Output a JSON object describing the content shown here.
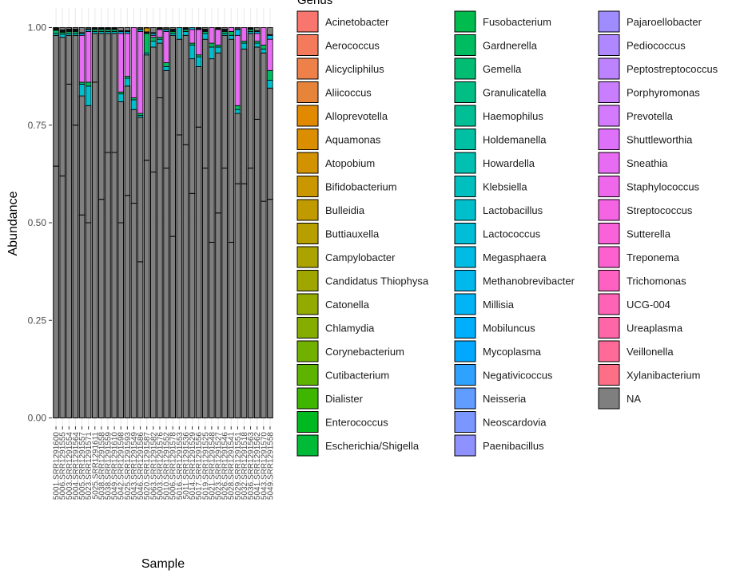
{
  "chart_data": {
    "type": "bar",
    "stacked": true,
    "xlabel": "Sample",
    "ylabel": "Abundance",
    "ylim": [
      0,
      1
    ],
    "yticks": [
      "0.00",
      "0.25",
      "0.50",
      "0.75",
      "1.00"
    ],
    "legend_title": "Genus",
    "legend_placement": "right",
    "grid": true,
    "categories": [
      "5001.SRR1291600",
      "5006.SRR1291555",
      "5003.SRR1291554",
      "5004.SRR1291564",
      "5005.SRR1291557",
      "5023.SRR1291571",
      "5025.SRR1291611",
      "5038.SRR1291558",
      "5038.SRR1291559",
      "5049.SRR1291610",
      "5042.SRR1291598",
      "5025.SRR1291593",
      "5043.SRR1291549",
      "5046.SRR1291586",
      "5020.SRR1291587",
      "5063.SRR1291582",
      "5003.SRR1291576",
      "5010.SRR1291552",
      "5006.SRR1291578",
      "5016.SRR1291553",
      "5011.SRR1291536",
      "5014.SRR1291529",
      "5017.SRR1291556",
      "5019.SRR1291525",
      "5021.SRR1291548",
      "5023.SRR1291527",
      "5026.SRR1291546",
      "5028.SRR1291541",
      "5029.SRR1291551",
      "5032.SRR1291518",
      "5036.SRR1291563",
      "5041.SRR1291562",
      "5043.SRR1291570",
      "5049.SRR1291558"
    ],
    "na_boundaries": [
      [
        0.645,
        0.98
      ],
      [
        0.62,
        0.975
      ],
      [
        0.855,
        0.98
      ],
      [
        0.75,
        0.98
      ],
      [
        0.52,
        0.825
      ],
      [
        0.5,
        0.8
      ],
      [
        0.86,
        0.985
      ],
      [
        0.56,
        0.985
      ],
      [
        0.68,
        0.985
      ],
      [
        0.68,
        0.985
      ],
      [
        0.5,
        0.81
      ],
      [
        0.57,
        0.85
      ],
      [
        0.55,
        0.79
      ],
      [
        0.4,
        0.77
      ],
      [
        0.66,
        0.93
      ],
      [
        0.63,
        0.95
      ],
      [
        0.82,
        0.96
      ],
      [
        0.64,
        0.89
      ],
      [
        0.465,
        0.98
      ],
      [
        0.725,
        0.97
      ],
      [
        0.7,
        0.98
      ],
      [
        0.575,
        0.92
      ],
      [
        0.745,
        0.9
      ],
      [
        0.64,
        0.97
      ],
      [
        0.45,
        0.92
      ],
      [
        0.525,
        0.935
      ],
      [
        0.64,
        0.98
      ],
      [
        0.45,
        0.97
      ],
      [
        0.6,
        0.78
      ],
      [
        0.6,
        0.945
      ],
      [
        0.64,
        0.985
      ],
      [
        0.765,
        0.95
      ],
      [
        0.555,
        0.935
      ],
      [
        0.56,
        0.845
      ]
    ],
    "series": [
      {
        "name": "Lactobacillus",
        "values": [
          0.005,
          0.008,
          0.005,
          0.005,
          0.03,
          0.05,
          0.005,
          0.005,
          0.005,
          0.005,
          0.02,
          0.02,
          0.025,
          0.005,
          0.005,
          0.015,
          0.01,
          0.01,
          0.005,
          0.03,
          0.01,
          0.035,
          0.025,
          0.015,
          0.03,
          0.015,
          0.005,
          0.01,
          0.01,
          0.015,
          0.005,
          0.01,
          0.01,
          0.02
        ]
      },
      {
        "name": "Gardnerella",
        "values": [
          0.008,
          0.005,
          0.005,
          0.005,
          0.005,
          0.01,
          0.005,
          0.005,
          0.005,
          0.005,
          0.005,
          0.005,
          0.005,
          0.005,
          0.05,
          0.01,
          0.005,
          0.01,
          0.005,
          0.005,
          0.005,
          0.005,
          0.005,
          0.005,
          0.01,
          0.005,
          0.005,
          0.01,
          0.01,
          0.005,
          0.005,
          0.005,
          0.01,
          0.025
        ]
      },
      {
        "name": "Sneathia",
        "values": [
          0.002,
          0.002,
          0.002,
          0.002,
          0.12,
          0.13,
          0.002,
          0.002,
          0.002,
          0.002,
          0.15,
          0.11,
          0.2,
          0.21,
          0.002,
          0.005,
          0.02,
          0.08,
          0.002,
          0.015,
          0.002,
          0.035,
          0.065,
          0.002,
          0.05,
          0.04,
          0.002,
          0.015,
          0.18,
          0.035,
          0.002,
          0.02,
          0.045,
          0.08
        ]
      },
      {
        "name": "Megasphaera",
        "values": [
          0.002,
          0.002,
          0.002,
          0.002,
          0.005,
          0.005,
          0.002,
          0.002,
          0.002,
          0.002,
          0.005,
          0.005,
          0.005,
          0.005,
          0.002,
          0.005,
          0.002,
          0.005,
          0.002,
          0.005,
          0.002,
          0.005,
          0.002,
          0.002,
          0.005,
          0.002,
          0.002,
          0.005,
          0.015,
          0.002,
          0.002,
          0.005,
          0.005,
          0.01
        ]
      },
      {
        "name": "Atopobium",
        "values": [
          0.002,
          0.002,
          0.002,
          0.002,
          0.002,
          0.002,
          0.002,
          0.002,
          0.002,
          0.002,
          0.002,
          0.002,
          0.002,
          0.002,
          0.01,
          0.002,
          0.002,
          0.002,
          0.002,
          0.002,
          0.002,
          0.002,
          0.002,
          0.002,
          0.002,
          0.002,
          0.002,
          0.002,
          0.002,
          0.01,
          0.002,
          0.002,
          0.002,
          0.002
        ]
      }
    ],
    "legend": [
      {
        "name": "Acinetobacter",
        "color": "#F8766D"
      },
      {
        "name": "Aerococcus",
        "color": "#F47A5C"
      },
      {
        "name": "Alicycliphilus",
        "color": "#EE804A"
      },
      {
        "name": "Aliicoccus",
        "color": "#E6853A"
      },
      {
        "name": "Alloprevotella",
        "color": "#E18A00"
      },
      {
        "name": "Aquamonas",
        "color": "#DB8E00"
      },
      {
        "name": "Atopobium",
        "color": "#D39200"
      },
      {
        "name": "Bifidobacterium",
        "color": "#CA9700"
      },
      {
        "name": "Bulleidia",
        "color": "#C19A00"
      },
      {
        "name": "Buttiauxella",
        "color": "#B79F00"
      },
      {
        "name": "Campylobacter",
        "color": "#ABA300"
      },
      {
        "name": "Candidatus Thiophysa",
        "color": "#A0A600"
      },
      {
        "name": "Catonella",
        "color": "#93AA00"
      },
      {
        "name": "Chlamydia",
        "color": "#84AD00"
      },
      {
        "name": "Corynebacterium",
        "color": "#72B000"
      },
      {
        "name": "Cutibacterium",
        "color": "#5DB300"
      },
      {
        "name": "Dialister",
        "color": "#3EB600"
      },
      {
        "name": "Enterococcus",
        "color": "#00B81F"
      },
      {
        "name": "Escherichia/Shigella",
        "color": "#00BA38"
      },
      {
        "name": "Fusobacterium",
        "color": "#00BB4E"
      },
      {
        "name": "Gardnerella",
        "color": "#00BC61"
      },
      {
        "name": "Gemella",
        "color": "#00BD73"
      },
      {
        "name": "Granulicatella",
        "color": "#00BE84"
      },
      {
        "name": "Haemophilus",
        "color": "#00BF94"
      },
      {
        "name": "Holdemanella",
        "color": "#00C0A3"
      },
      {
        "name": "Howardella",
        "color": "#00C0B2"
      },
      {
        "name": "Klebsiella",
        "color": "#00C0BF"
      },
      {
        "name": "Lactobacillus",
        "color": "#00BFCC"
      },
      {
        "name": "Lactococcus",
        "color": "#00BDD8"
      },
      {
        "name": "Megasphaera",
        "color": "#00BBE3"
      },
      {
        "name": "Methanobrevibacter",
        "color": "#00B8EC"
      },
      {
        "name": "Millisia",
        "color": "#00B4F5"
      },
      {
        "name": "Mobiluncus",
        "color": "#00AFFC"
      },
      {
        "name": "Mycoplasma",
        "color": "#00A9FF"
      },
      {
        "name": "Negativicoccus",
        "color": "#2FA2FF"
      },
      {
        "name": "Neisseria",
        "color": "#619CFF"
      },
      {
        "name": "Neoscardovia",
        "color": "#7C96FF"
      },
      {
        "name": "Paenibacillus",
        "color": "#8F91FF"
      },
      {
        "name": "Pajaroellobacter",
        "color": "#9F8CFF"
      },
      {
        "name": "Pediococcus",
        "color": "#AF87FF"
      },
      {
        "name": "Peptostreptococcus",
        "color": "#BD83FF"
      },
      {
        "name": "Porphyromonas",
        "color": "#C97EFF"
      },
      {
        "name": "Prevotella",
        "color": "#D47AFF"
      },
      {
        "name": "Shuttleworthia",
        "color": "#DD71FA"
      },
      {
        "name": "Sneathia",
        "color": "#E76BF3"
      },
      {
        "name": "Staphylococcus",
        "color": "#EF67EB"
      },
      {
        "name": "Streptococcus",
        "color": "#F564E3"
      },
      {
        "name": "Sutterella",
        "color": "#FA62D9"
      },
      {
        "name": "Treponema",
        "color": "#FD61CF"
      },
      {
        "name": "Trichomonas",
        "color": "#FF61C3"
      },
      {
        "name": "UCG-004",
        "color": "#FF63B6"
      },
      {
        "name": "Ureaplasma",
        "color": "#FF66A8"
      },
      {
        "name": "Veillonella",
        "color": "#FF6A98"
      },
      {
        "name": "Xylanibacterium",
        "color": "#FC6F87"
      },
      {
        "name": "NA",
        "color": "#7F7F7F"
      }
    ]
  }
}
